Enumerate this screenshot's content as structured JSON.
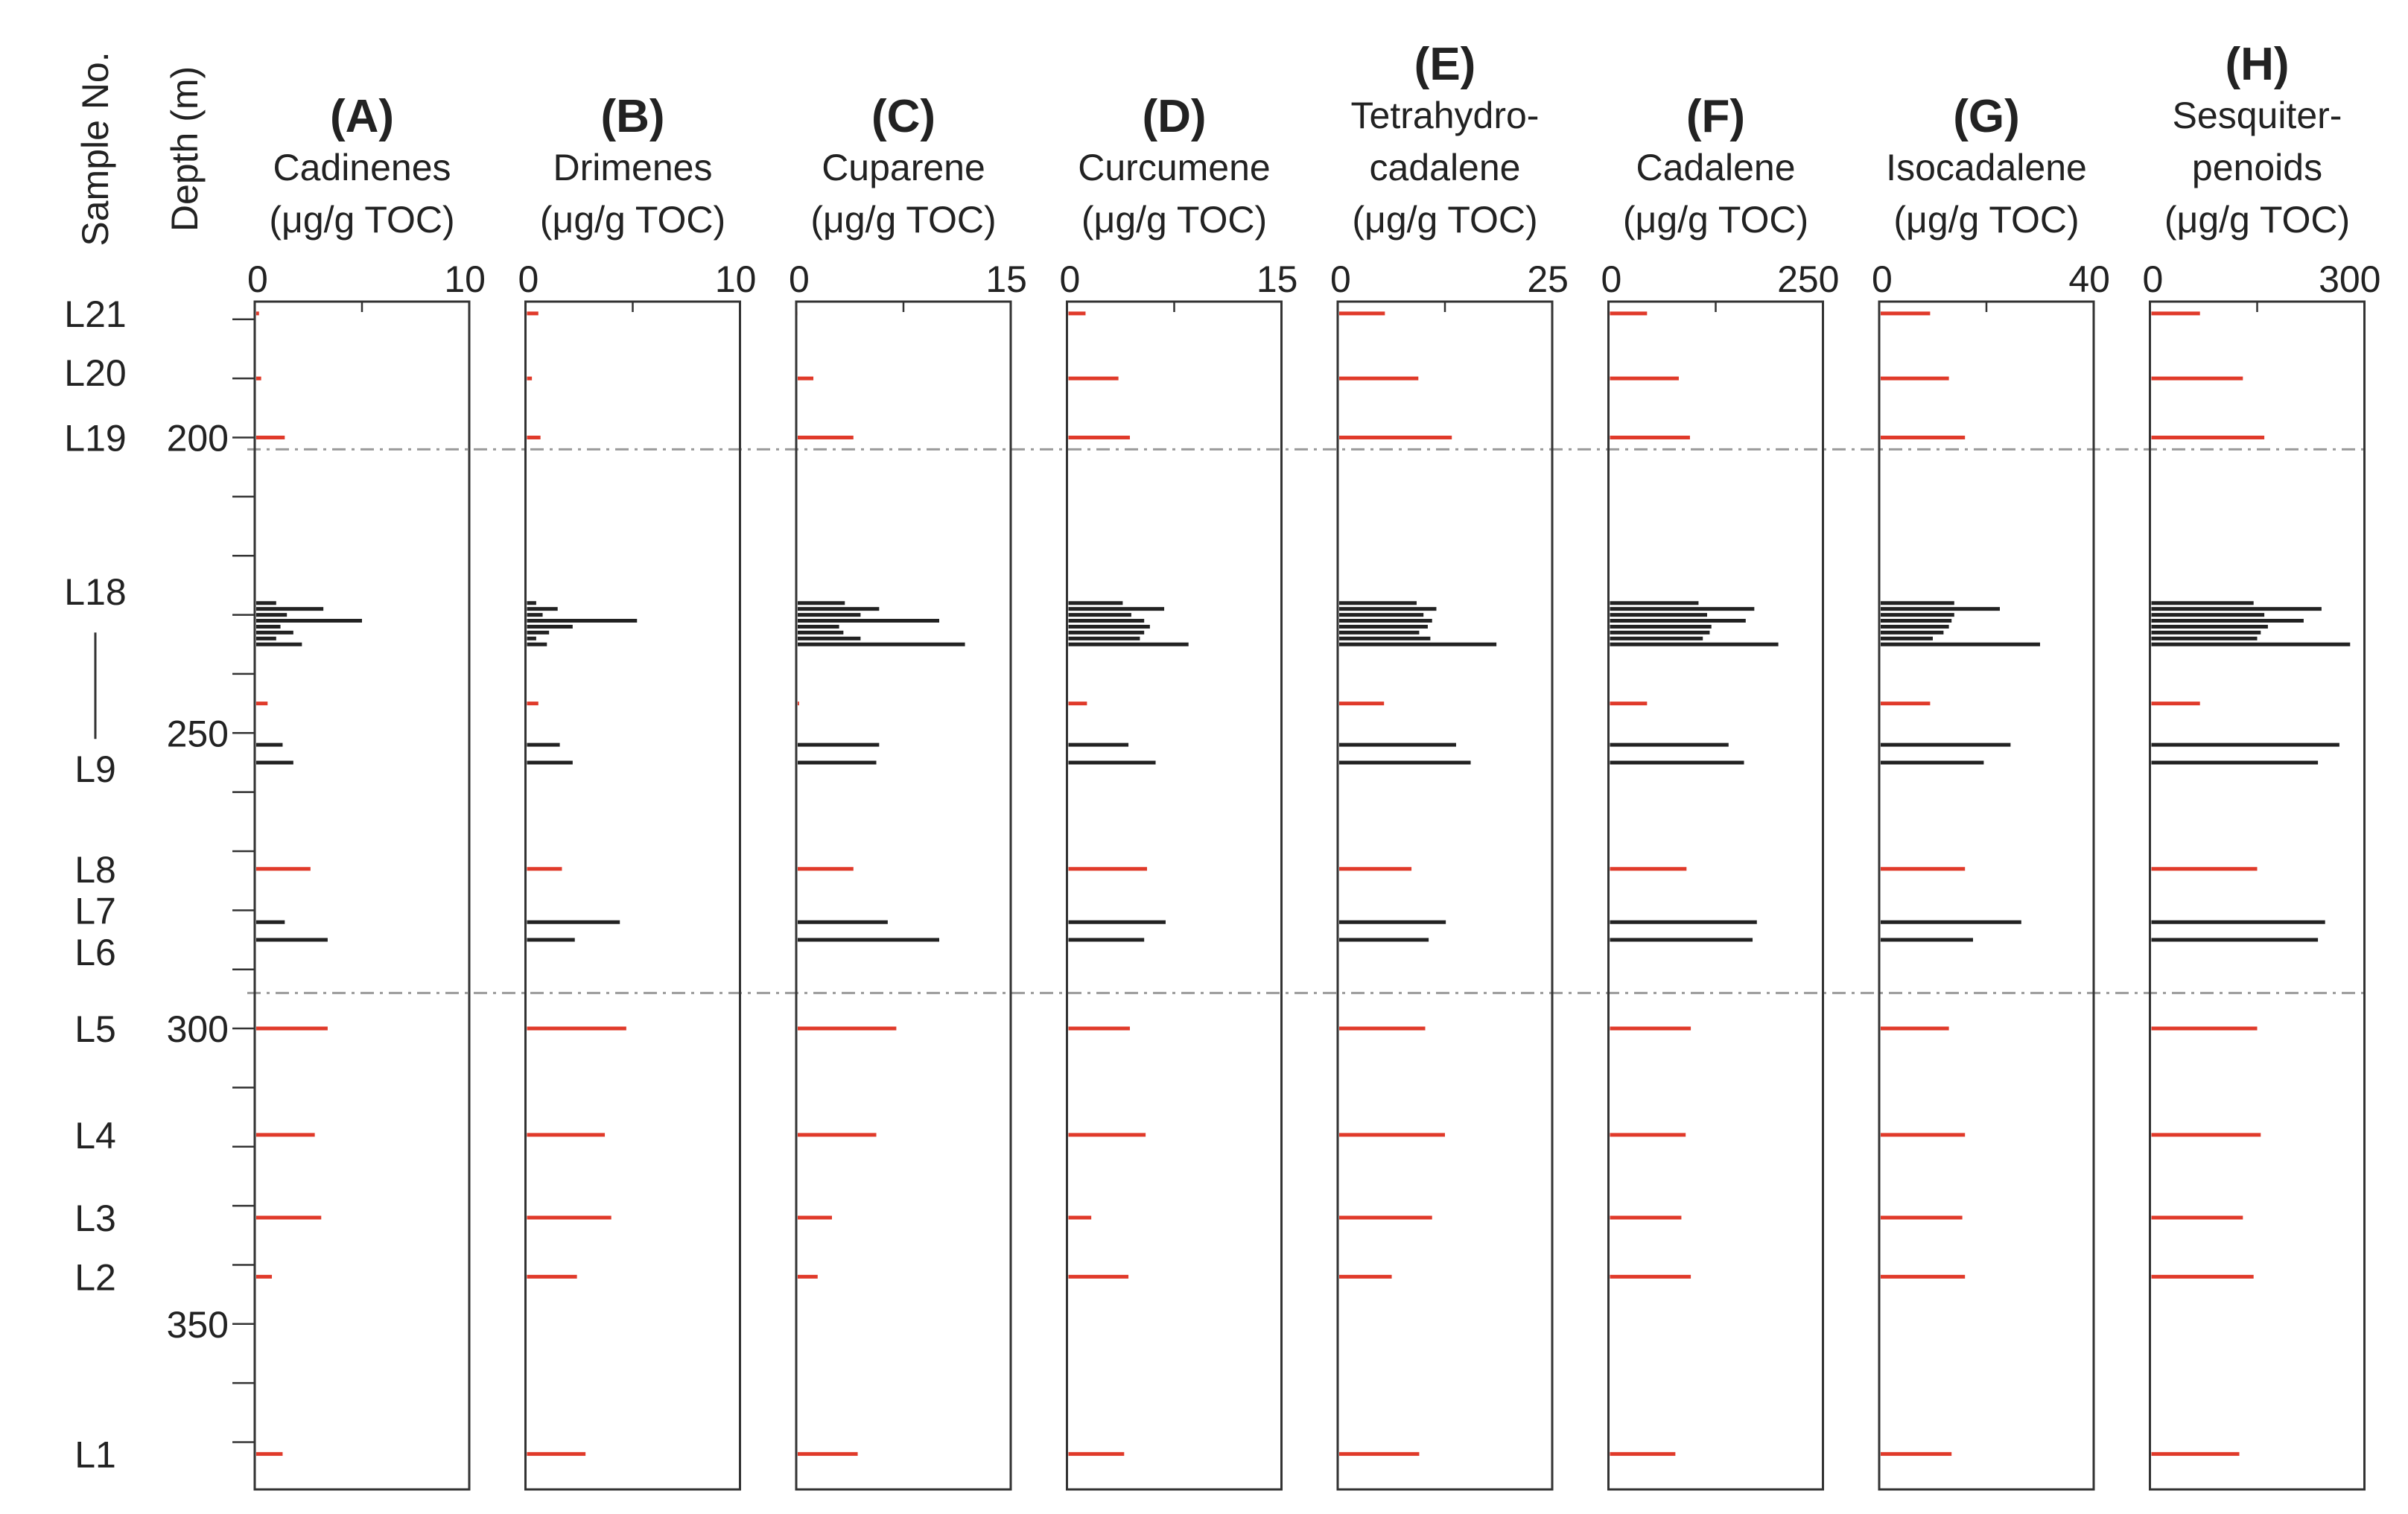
{
  "chart_data": {
    "type": "bar",
    "orientation": "horizontal",
    "y_axis": {
      "label": "Depth (m)",
      "range": [
        177,
        378
      ],
      "ticks": [
        200,
        250,
        300,
        350
      ]
    },
    "sample_axis": {
      "label": "Sample No.",
      "labels": [
        {
          "text": "L21",
          "depth": 179
        },
        {
          "text": "L20",
          "depth": 189
        },
        {
          "text": "L19",
          "depth": 200
        },
        {
          "text": "L18",
          "depth": 226
        },
        {
          "text": "L9",
          "depth": 256
        },
        {
          "text": "L8",
          "depth": 273
        },
        {
          "text": "L7",
          "depth": 280
        },
        {
          "text": "L6",
          "depth": 287
        },
        {
          "text": "L5",
          "depth": 300
        },
        {
          "text": "L4",
          "depth": 318
        },
        {
          "text": "L3",
          "depth": 332
        },
        {
          "text": "L2",
          "depth": 342
        },
        {
          "text": "L1",
          "depth": 372
        }
      ],
      "range_line": {
        "from_depth": 233,
        "to_depth": 251
      }
    },
    "reference_lines": [
      202,
      294
    ],
    "depths": [
      179,
      190,
      200,
      228,
      229,
      230,
      231,
      232,
      233,
      234,
      235,
      245,
      252,
      255,
      273,
      282,
      285,
      300,
      318,
      332,
      342,
      372
    ],
    "series_colors": [
      "#e03a2a",
      "#e03a2a",
      "#e03a2a",
      "#222222",
      "#222222",
      "#222222",
      "#222222",
      "#222222",
      "#222222",
      "#222222",
      "#222222",
      "#e03a2a",
      "#222222",
      "#222222",
      "#e03a2a",
      "#222222",
      "#222222",
      "#e03a2a",
      "#e03a2a",
      "#e03a2a",
      "#e03a2a",
      "#e03a2a"
    ],
    "panels": [
      {
        "label": "(A)",
        "name": [
          "Cadinenes",
          "(μg/g TOC)"
        ],
        "xlim": [
          0,
          10
        ],
        "ticks": [
          0,
          10
        ],
        "minor_step": 5,
        "values": [
          0.2,
          0.3,
          1.4,
          1.0,
          3.2,
          1.5,
          5.0,
          1.2,
          1.8,
          1.0,
          2.2,
          0.6,
          1.3,
          1.8,
          2.6,
          1.4,
          3.4,
          3.4,
          2.8,
          3.1,
          0.8,
          1.3
        ]
      },
      {
        "label": "(B)",
        "name": [
          "Drimenes",
          "(μg/g TOC)"
        ],
        "xlim": [
          0,
          10
        ],
        "ticks": [
          0,
          10
        ],
        "minor_step": 5,
        "values": [
          0.6,
          0.3,
          0.7,
          0.5,
          1.5,
          0.8,
          5.2,
          2.2,
          1.1,
          0.5,
          1.0,
          0.6,
          1.6,
          2.2,
          1.7,
          4.4,
          2.3,
          4.7,
          3.7,
          4.0,
          2.4,
          2.8
        ]
      },
      {
        "label": "(C)",
        "name": [
          "Cuparene",
          "(μg/g TOC)"
        ],
        "xlim": [
          0,
          15
        ],
        "ticks": [
          0,
          15
        ],
        "minor_step": 7.5,
        "values": [
          0.1,
          1.2,
          4.0,
          3.4,
          5.8,
          4.5,
          10.0,
          3.0,
          3.3,
          4.5,
          11.8,
          0.2,
          5.8,
          5.6,
          4.0,
          6.4,
          10.0,
          7.0,
          5.6,
          2.5,
          1.5,
          4.3
        ]
      },
      {
        "label": "(D)",
        "name": [
          "Curcumene",
          "(μg/g TOC)"
        ],
        "xlim": [
          0,
          15
        ],
        "ticks": [
          0,
          15
        ],
        "minor_step": 7.5,
        "values": [
          1.3,
          3.6,
          4.4,
          3.9,
          6.8,
          4.5,
          5.4,
          5.8,
          5.4,
          5.1,
          8.5,
          1.4,
          4.3,
          6.2,
          5.6,
          6.9,
          5.4,
          4.4,
          5.5,
          1.7,
          4.3,
          4.0
        ]
      },
      {
        "label": "(E)",
        "name": [
          "Tetrahydro-",
          "cadalene",
          "(μg/g TOC)"
        ],
        "xlim": [
          0,
          25
        ],
        "ticks": [
          0,
          25
        ],
        "minor_step": 12.5,
        "values": [
          5.5,
          9.4,
          13.3,
          9.2,
          11.5,
          10.0,
          11.0,
          10.5,
          9.5,
          10.8,
          18.5,
          5.4,
          13.8,
          15.5,
          8.6,
          12.6,
          10.6,
          10.2,
          12.5,
          11.0,
          6.3,
          9.5
        ]
      },
      {
        "label": "(F)",
        "name": [
          "Cadalene",
          "(μg/g TOC)"
        ],
        "xlim": [
          0,
          250
        ],
        "ticks": [
          0,
          250
        ],
        "minor_step": 125,
        "values": [
          45,
          82,
          95,
          105,
          170,
          115,
          160,
          120,
          118,
          110,
          198,
          45,
          140,
          158,
          91,
          173,
          168,
          96,
          90,
          85,
          96,
          78
        ]
      },
      {
        "label": "(G)",
        "name": [
          "Isocadalene",
          "(μg/g TOC)"
        ],
        "xlim": [
          0,
          40
        ],
        "ticks": [
          0,
          40
        ],
        "minor_step": 20,
        "values": [
          9.5,
          13.0,
          16.0,
          14.0,
          22.5,
          14.0,
          13.5,
          13.0,
          12.0,
          10.0,
          30.0,
          9.5,
          24.5,
          19.5,
          16.0,
          26.5,
          17.5,
          13.0,
          16.0,
          15.5,
          16.0,
          13.5
        ]
      },
      {
        "label": "(H)",
        "name": [
          "Sesquiter-",
          "penoids",
          "(μg/g TOC)"
        ],
        "xlim": [
          0,
          300
        ],
        "ticks": [
          0,
          300
        ],
        "minor_step": 150,
        "values": [
          70,
          130,
          160,
          145,
          240,
          160,
          215,
          165,
          155,
          150,
          280,
          70,
          265,
          235,
          150,
          245,
          235,
          150,
          155,
          130,
          145,
          125
        ]
      }
    ]
  }
}
